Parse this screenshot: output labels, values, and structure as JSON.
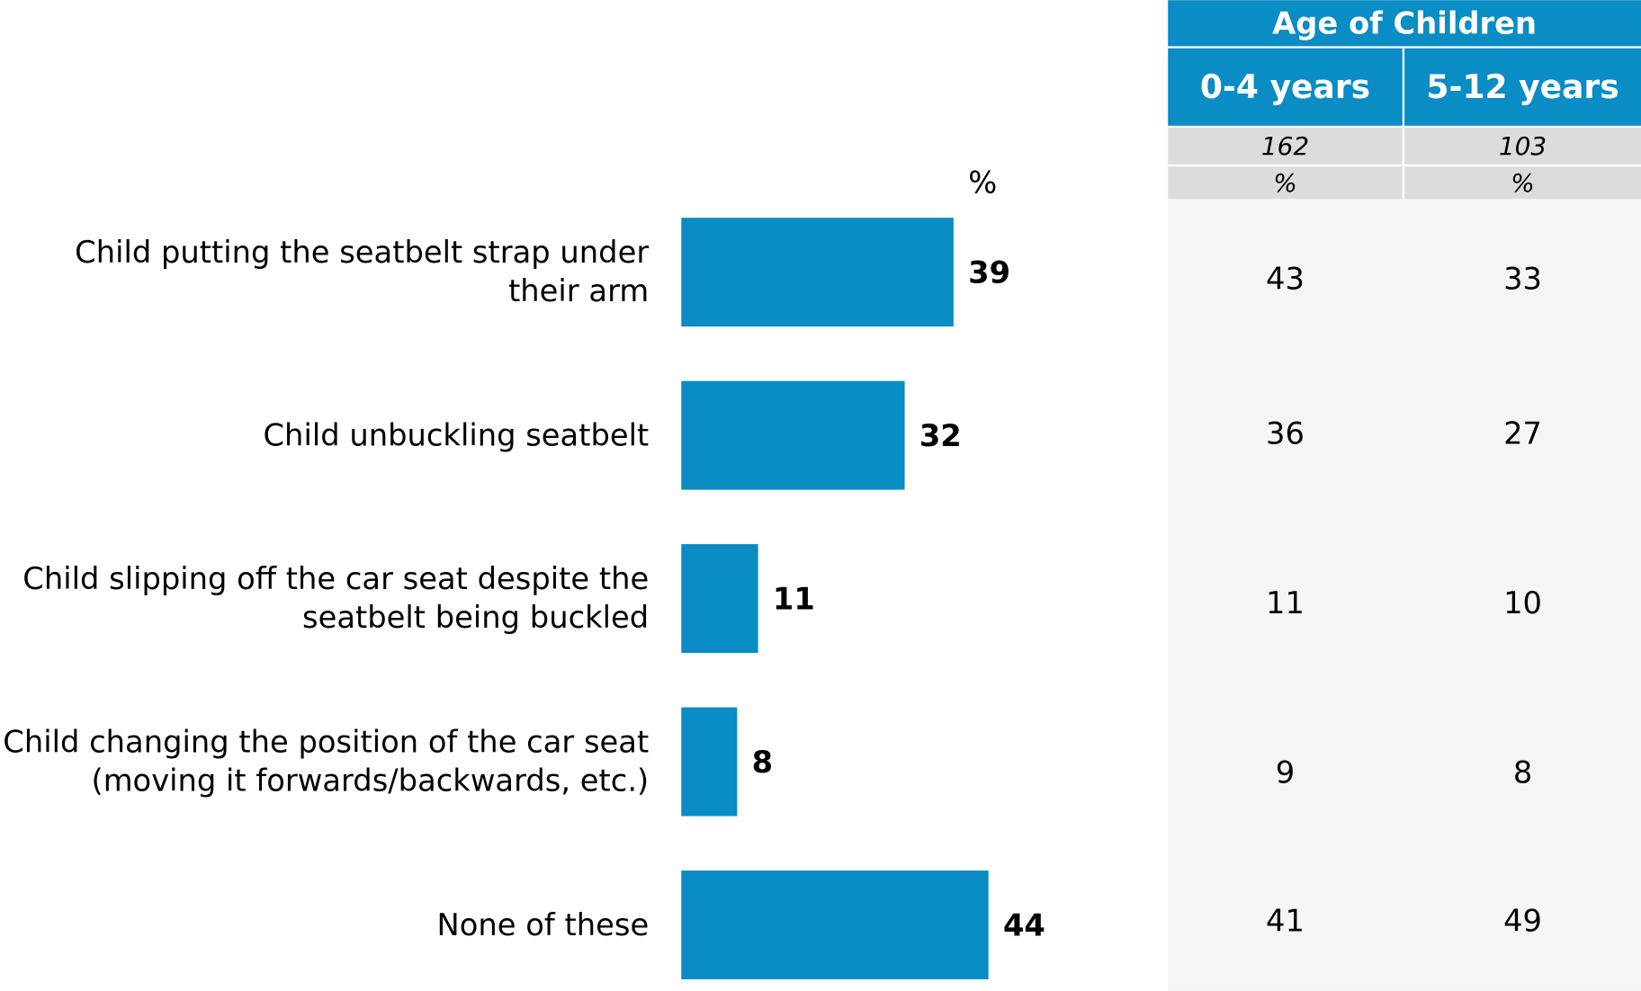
{
  "chart_data": {
    "type": "bar",
    "orientation": "horizontal",
    "unit_label": "%",
    "categories": [
      "Child putting the seatbelt strap under their arm",
      "Child unbuckling seatbelt",
      "Child slipping off the car seat despite the seatbelt being buckled",
      "Child changing the position of the car seat (moving it forwards/backwards, etc.)",
      "None of these"
    ],
    "values": [
      39,
      32,
      11,
      8,
      44
    ],
    "color": "#0a8cc4"
  },
  "table": {
    "title": "Age of Children",
    "header_color": "#0a8cc4",
    "columns": [
      "0-4 years",
      "5-12 years"
    ],
    "bases": [
      162,
      103
    ],
    "unit_row": [
      "%",
      "%"
    ],
    "rows": [
      [
        43,
        33
      ],
      [
        36,
        27
      ],
      [
        11,
        10
      ],
      [
        9,
        8
      ],
      [
        41,
        49
      ]
    ]
  }
}
